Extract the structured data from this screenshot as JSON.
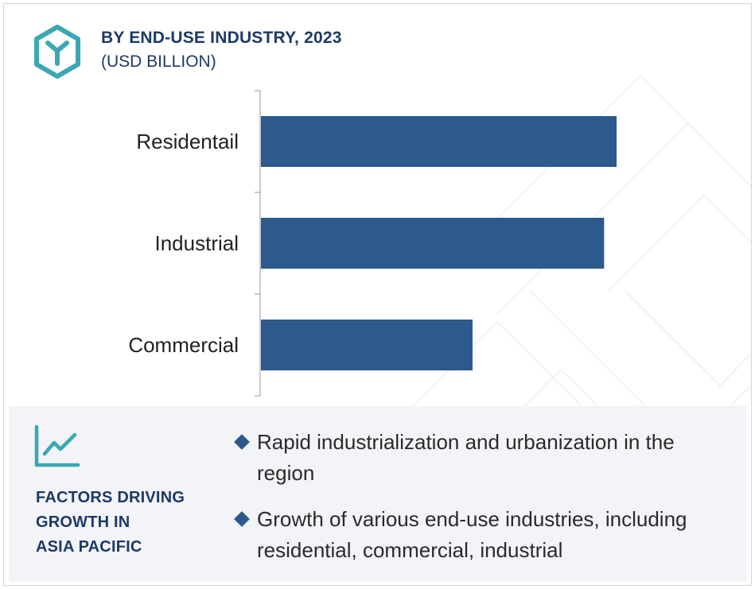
{
  "header": {
    "title": "BY END-USE INDUSTRY, 2023",
    "subtitle": "(USD BILLION)",
    "logo_icon": "hexagon-y-icon"
  },
  "colors": {
    "bar": "#2d5a8c",
    "title": "#1d3a66",
    "panel_bg": "#f3f4f8",
    "accent": "#3aa7b4"
  },
  "chart_data": {
    "type": "bar",
    "orientation": "horizontal",
    "categories": [
      "Residentail",
      "Industrial",
      "Commercial"
    ],
    "values": [
      100,
      96.5,
      59.5
    ],
    "xlim": [
      0,
      100
    ],
    "grid": false,
    "value_labels_shown": false
  },
  "panel": {
    "icon": "trend-chart-icon",
    "heading_lines": [
      "FACTORS DRIVING",
      "GROWTH IN",
      "ASIA PACIFIC"
    ],
    "factors": [
      "Rapid industrialization and urbanization in the region",
      "Growth of various end-use industries, including residential, commercial, industrial"
    ]
  }
}
